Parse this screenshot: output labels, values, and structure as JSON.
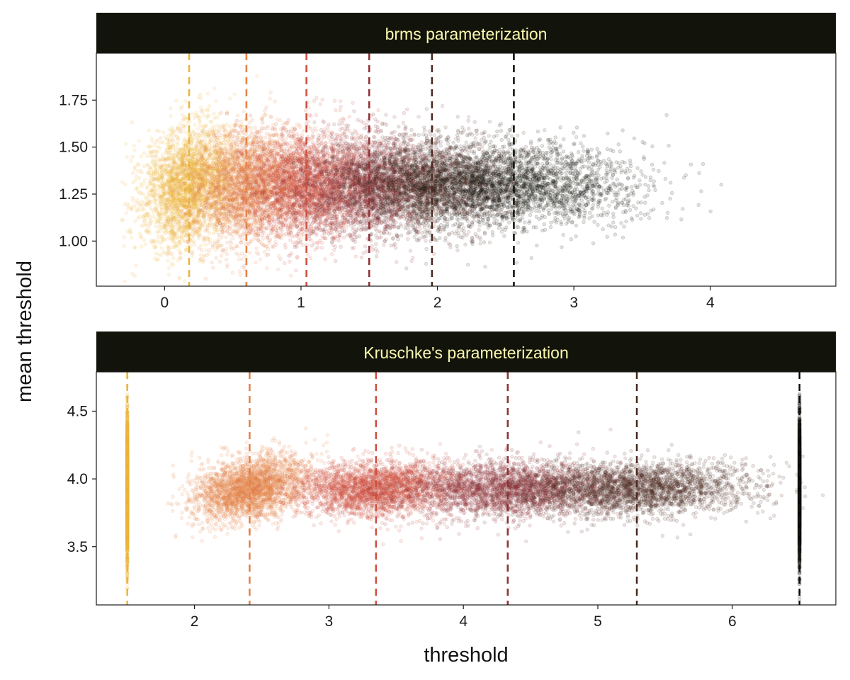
{
  "chart_data": {
    "type": "scatter",
    "xlabel": "threshold",
    "ylabel": "mean threshold",
    "colors": [
      "#ECB53C",
      "#E4844A",
      "#D0503F",
      "#8F3236",
      "#4C2A22",
      "#12130A"
    ],
    "strip_fill": "#12130A",
    "strip_text_color": "#FCF9B0",
    "grid": false,
    "legend": "none",
    "panels": [
      {
        "title": "brms parameterization",
        "xlim": [
          -0.5,
          4.92
        ],
        "ylim": [
          0.76,
          2.0
        ],
        "xticks": [
          0,
          1,
          2,
          3,
          4
        ],
        "xtick_labels": [
          "0",
          "1",
          "2",
          "3",
          "4"
        ],
        "yticks": [
          1.0,
          1.25,
          1.5,
          1.75
        ],
        "ytick_labels": [
          "1.00",
          "1.25",
          "1.50",
          "1.75"
        ],
        "dashed_lines_x": [
          0.18,
          0.6,
          1.04,
          1.5,
          1.96,
          2.56
        ],
        "clusters": [
          {
            "mean_x": 0.18,
            "sd_x": 0.17,
            "mean_y": 1.3,
            "sd_y": 0.16,
            "slope": 0.22
          },
          {
            "mean_x": 0.6,
            "sd_x": 0.2,
            "mean_y": 1.3,
            "sd_y": 0.15,
            "slope": 0.22
          },
          {
            "mean_x": 1.04,
            "sd_x": 0.23,
            "mean_y": 1.3,
            "sd_y": 0.14,
            "slope": 0.2
          },
          {
            "mean_x": 1.5,
            "sd_x": 0.27,
            "mean_y": 1.3,
            "sd_y": 0.13,
            "slope": 0.18
          },
          {
            "mean_x": 1.96,
            "sd_x": 0.33,
            "mean_y": 1.3,
            "sd_y": 0.12,
            "slope": 0.16
          },
          {
            "mean_x": 2.56,
            "sd_x": 0.45,
            "mean_y": 1.3,
            "sd_y": 0.11,
            "slope": 0.14
          }
        ]
      },
      {
        "title": "Kruschke's parameterization",
        "xlim": [
          1.27,
          6.77
        ],
        "ylim": [
          3.07,
          4.79
        ],
        "xticks": [
          2,
          3,
          4,
          5,
          6
        ],
        "xtick_labels": [
          "2",
          "3",
          "4",
          "5",
          "6"
        ],
        "yticks": [
          3.5,
          4.0,
          4.5
        ],
        "ytick_labels": [
          "3.5",
          "4.0",
          "4.5"
        ],
        "dashed_lines_x": [
          1.5,
          2.41,
          3.35,
          4.33,
          5.29,
          6.5
        ],
        "clusters": [
          {
            "mean_x": 1.5,
            "sd_x": 0.0,
            "mean_y": 3.93,
            "sd_y": 0.24,
            "slope": 0
          },
          {
            "mean_x": 2.41,
            "sd_x": 0.2,
            "mean_y": 3.93,
            "sd_y": 0.12,
            "slope": 0.55
          },
          {
            "mean_x": 3.35,
            "sd_x": 0.3,
            "mean_y": 3.93,
            "sd_y": 0.1,
            "slope": 0.4
          },
          {
            "mean_x": 4.33,
            "sd_x": 0.4,
            "mean_y": 3.93,
            "sd_y": 0.1,
            "slope": 0.34
          },
          {
            "mean_x": 5.29,
            "sd_x": 0.44,
            "mean_y": 3.93,
            "sd_y": 0.1,
            "slope": 0.32
          },
          {
            "mean_x": 6.5,
            "sd_x": 0.0,
            "mean_y": 3.93,
            "sd_y": 0.24,
            "slope": 0
          }
        ]
      }
    ]
  }
}
